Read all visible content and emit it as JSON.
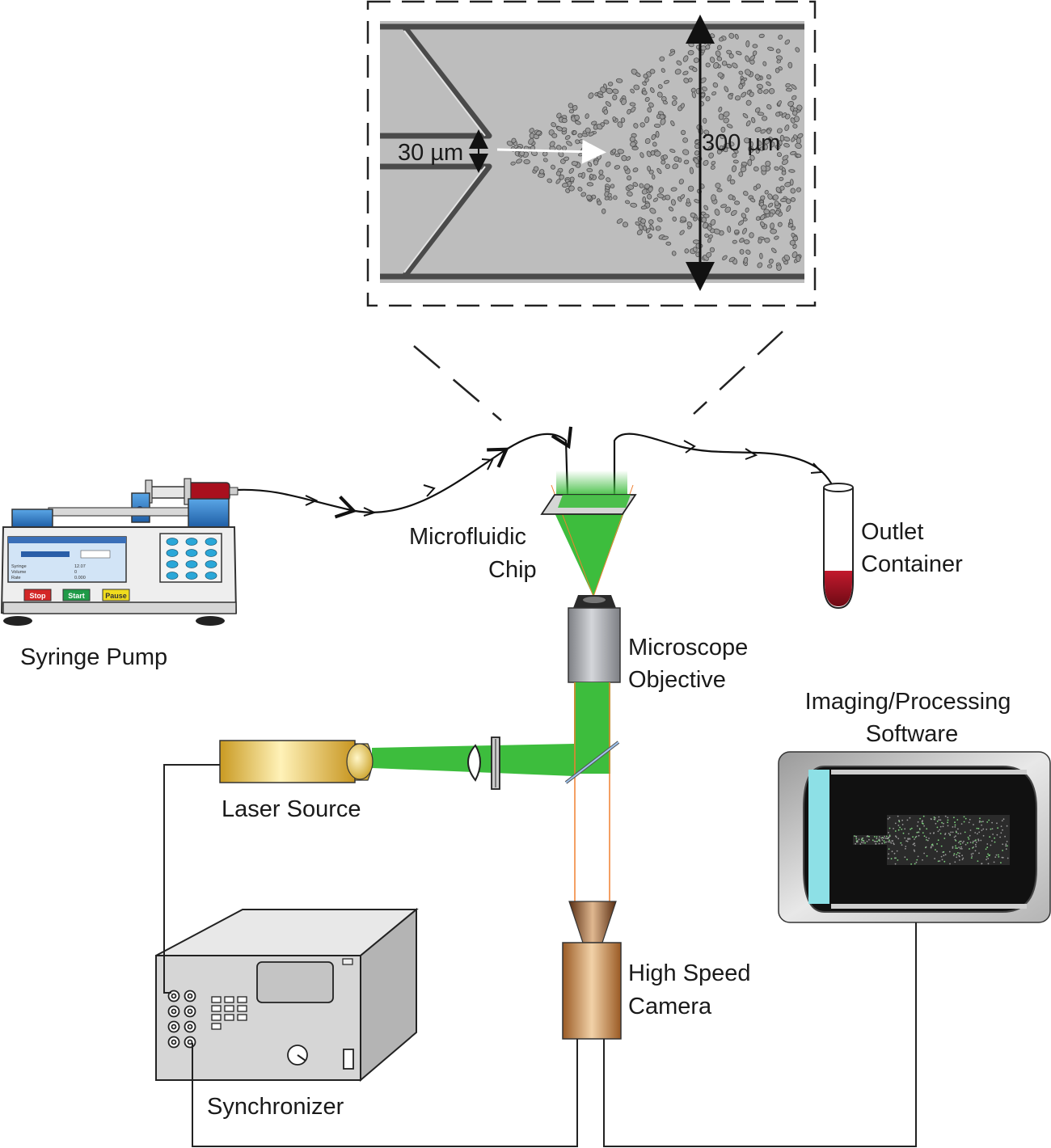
{
  "inset": {
    "left_dimension": "30 µm",
    "right_dimension": "300 µm"
  },
  "labels": {
    "microfluidic_chip": [
      "Microfluidic",
      "Chip"
    ],
    "outlet_container": [
      "Outlet",
      "Container"
    ],
    "syringe_pump": "Syringe Pump",
    "microscope_objective": [
      "Microscope",
      "Objective"
    ],
    "imaging_software": [
      "Imaging/Processing",
      "Software"
    ],
    "laser_source": "Laser Source",
    "high_speed_camera": [
      "High Speed",
      "Camera"
    ],
    "synchronizer": "Synchronizer"
  },
  "pump": {
    "buttons": [
      "Stop",
      "Start",
      "Pause"
    ],
    "screen_rows": [
      "Syringe",
      "Volume",
      "Rate"
    ],
    "screen_values": [
      "12.07",
      "0",
      "0.000"
    ]
  },
  "colors": {
    "laser_green": "#3dbd3d",
    "blood_red": "#9b1020",
    "stop": "#d32626",
    "start": "#1f9b48",
    "pause": "#f0dc1e",
    "pump_blue": "#2f80c8",
    "camera_brown": "#b8783c",
    "laser_gold": "#d8a830",
    "screen_cyan": "#8de0e6"
  }
}
